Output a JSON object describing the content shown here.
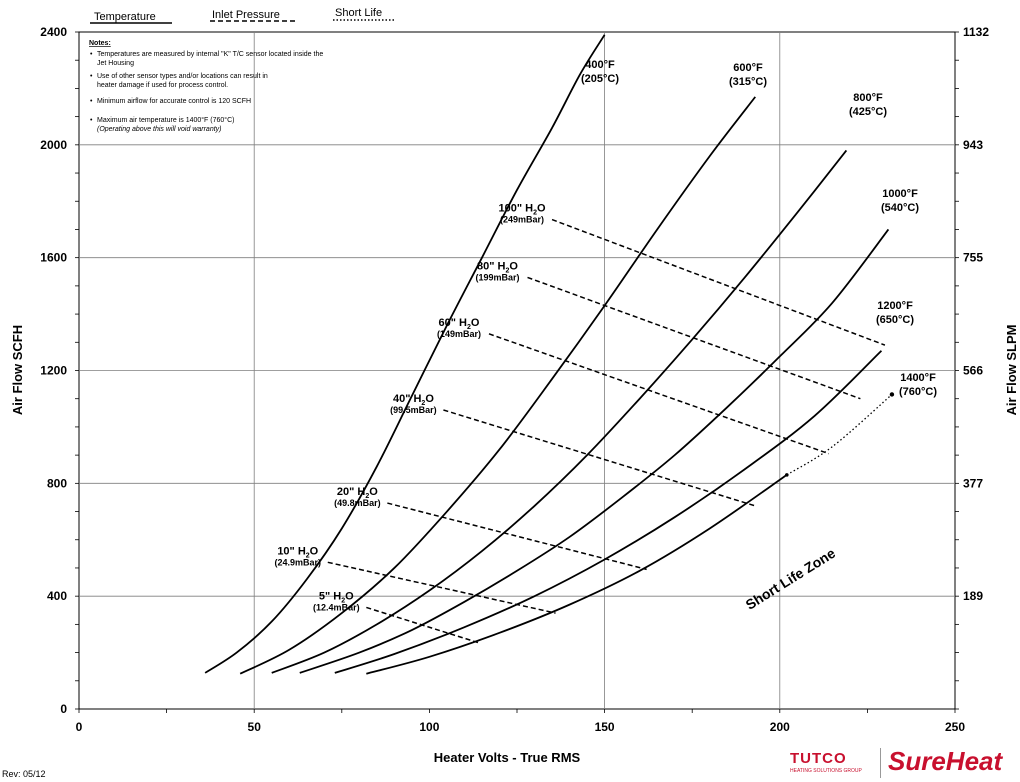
{
  "chart_data": {
    "type": "line",
    "legend": [
      "Temperature",
      "Inlet Pressure",
      "Short Life"
    ],
    "legend_placement": "top-left",
    "xlabel": "Heater Volts - True RMS",
    "ylabel": "Air Flow SCFH",
    "y2label": "Air Flow SLPM",
    "xlim": [
      0,
      250
    ],
    "ylim": [
      0,
      2400
    ],
    "xticks": [
      "0",
      "50",
      "100",
      "150",
      "200",
      "250"
    ],
    "yticks": [
      "0",
      "400",
      "800",
      "1200",
      "1600",
      "2000",
      "2400"
    ],
    "y2ticks": [
      "189",
      "377",
      "566",
      "755",
      "943",
      "1132"
    ],
    "grid": "major lines at x=50,150,200 and y=400,800,1200,1600,2000",
    "temperature_curves": [
      {
        "label1": "400°F",
        "label2": "(205°C)",
        "points": [
          [
            36,
            128
          ],
          [
            45,
            200
          ],
          [
            55,
            310
          ],
          [
            65,
            460
          ],
          [
            75,
            640
          ],
          [
            85,
            860
          ],
          [
            95,
            1110
          ],
          [
            105,
            1360
          ],
          [
            115,
            1600
          ],
          [
            125,
            1840
          ],
          [
            135,
            2060
          ],
          [
            143,
            2250
          ],
          [
            150,
            2390
          ]
        ]
      },
      {
        "label1": "600°F",
        "label2": "(315°C)",
        "points": [
          [
            46,
            125
          ],
          [
            60,
            210
          ],
          [
            75,
            340
          ],
          [
            90,
            500
          ],
          [
            105,
            700
          ],
          [
            120,
            920
          ],
          [
            135,
            1170
          ],
          [
            150,
            1430
          ],
          [
            165,
            1700
          ],
          [
            180,
            1960
          ],
          [
            193,
            2170
          ]
        ]
      },
      {
        "label1": "800°F",
        "label2": "(425°C)",
        "points": [
          [
            55,
            128
          ],
          [
            70,
            200
          ],
          [
            85,
            300
          ],
          [
            100,
            420
          ],
          [
            115,
            560
          ],
          [
            130,
            720
          ],
          [
            145,
            900
          ],
          [
            160,
            1100
          ],
          [
            175,
            1310
          ],
          [
            190,
            1530
          ],
          [
            205,
            1760
          ],
          [
            219,
            1980
          ]
        ]
      },
      {
        "label1": "1000°F",
        "label2": "(540°C)",
        "points": [
          [
            63,
            128
          ],
          [
            80,
            200
          ],
          [
            95,
            280
          ],
          [
            110,
            380
          ],
          [
            125,
            490
          ],
          [
            140,
            610
          ],
          [
            155,
            750
          ],
          [
            170,
            900
          ],
          [
            185,
            1070
          ],
          [
            200,
            1250
          ],
          [
            215,
            1440
          ],
          [
            231,
            1700
          ]
        ]
      },
      {
        "label1": "1200°F",
        "label2": "(650°C)",
        "points": [
          [
            73,
            128
          ],
          [
            90,
            195
          ],
          [
            110,
            290
          ],
          [
            130,
            400
          ],
          [
            150,
            530
          ],
          [
            170,
            680
          ],
          [
            190,
            850
          ],
          [
            210,
            1040
          ],
          [
            229,
            1270
          ]
        ]
      },
      {
        "label1": "1400°F",
        "label2": "(760°C)",
        "points": [
          [
            82,
            125
          ],
          [
            100,
            185
          ],
          [
            120,
            270
          ],
          [
            140,
            370
          ],
          [
            160,
            490
          ],
          [
            180,
            640
          ],
          [
            202,
            830
          ]
        ],
        "short_life_points": [
          [
            202,
            830
          ],
          [
            215,
            930
          ],
          [
            232,
            1115
          ]
        ]
      }
    ],
    "pressure_lines": [
      {
        "label": "5\" H",
        "sub": "2",
        "tail": "O",
        "mbar": "(12.4mBar)",
        "from": [
          82,
          360
        ],
        "to": [
          114,
          235
        ]
      },
      {
        "label": "10\" H",
        "sub": "2",
        "tail": "O",
        "mbar": "(24.9mBar)",
        "from": [
          71,
          520
        ],
        "to": [
          136,
          340
        ]
      },
      {
        "label": "20\" H",
        "sub": "2",
        "tail": "O",
        "mbar": "(49.8mBar)",
        "from": [
          88,
          730
        ],
        "to": [
          162,
          495
        ]
      },
      {
        "label": "40\" H",
        "sub": "2",
        "tail": "O",
        "mbar": "(99.5mBar)",
        "from": [
          104,
          1060
        ],
        "to": [
          193,
          720
        ]
      },
      {
        "label": "60\" H",
        "sub": "2",
        "tail": "O",
        "mbar": "(149mBar)",
        "from": [
          117,
          1330
        ],
        "to": [
          214,
          905
        ]
      },
      {
        "label": "80\" H",
        "sub": "2",
        "tail": "O",
        "mbar": "(199mBar)",
        "from": [
          128,
          1530
        ],
        "to": [
          223,
          1100
        ]
      },
      {
        "label": "100\" H",
        "sub": "2",
        "tail": "O",
        "mbar": "(249mBar)",
        "from": [
          135,
          1735
        ],
        "to": [
          230,
          1290
        ]
      }
    ],
    "annotation": "Short Life Zone"
  },
  "notes": {
    "title": "Notes:",
    "items": [
      "Temperatures are measured by internal \"K\" T/C sensor  located inside the",
      "Jet Housing",
      "Use of other sensor types and/or locations can result in",
      "heater damage if used for process control.",
      "Minimum airflow for accurate control is 120 SCFH",
      "Maximum air temperature is 1400°F (760°C)",
      "(Operating above this will void warranty)"
    ]
  },
  "footer": {
    "rev": "Rev:  05/12",
    "logo_tutco": "TUTCO",
    "logo_tutco_sub": "HEATING SOLUTIONS GROUP",
    "logo_sureheat": "SureHeat"
  },
  "colors": {
    "line": "#000000",
    "grid": "#7f7f7f",
    "brand_red": "#c8102e"
  }
}
